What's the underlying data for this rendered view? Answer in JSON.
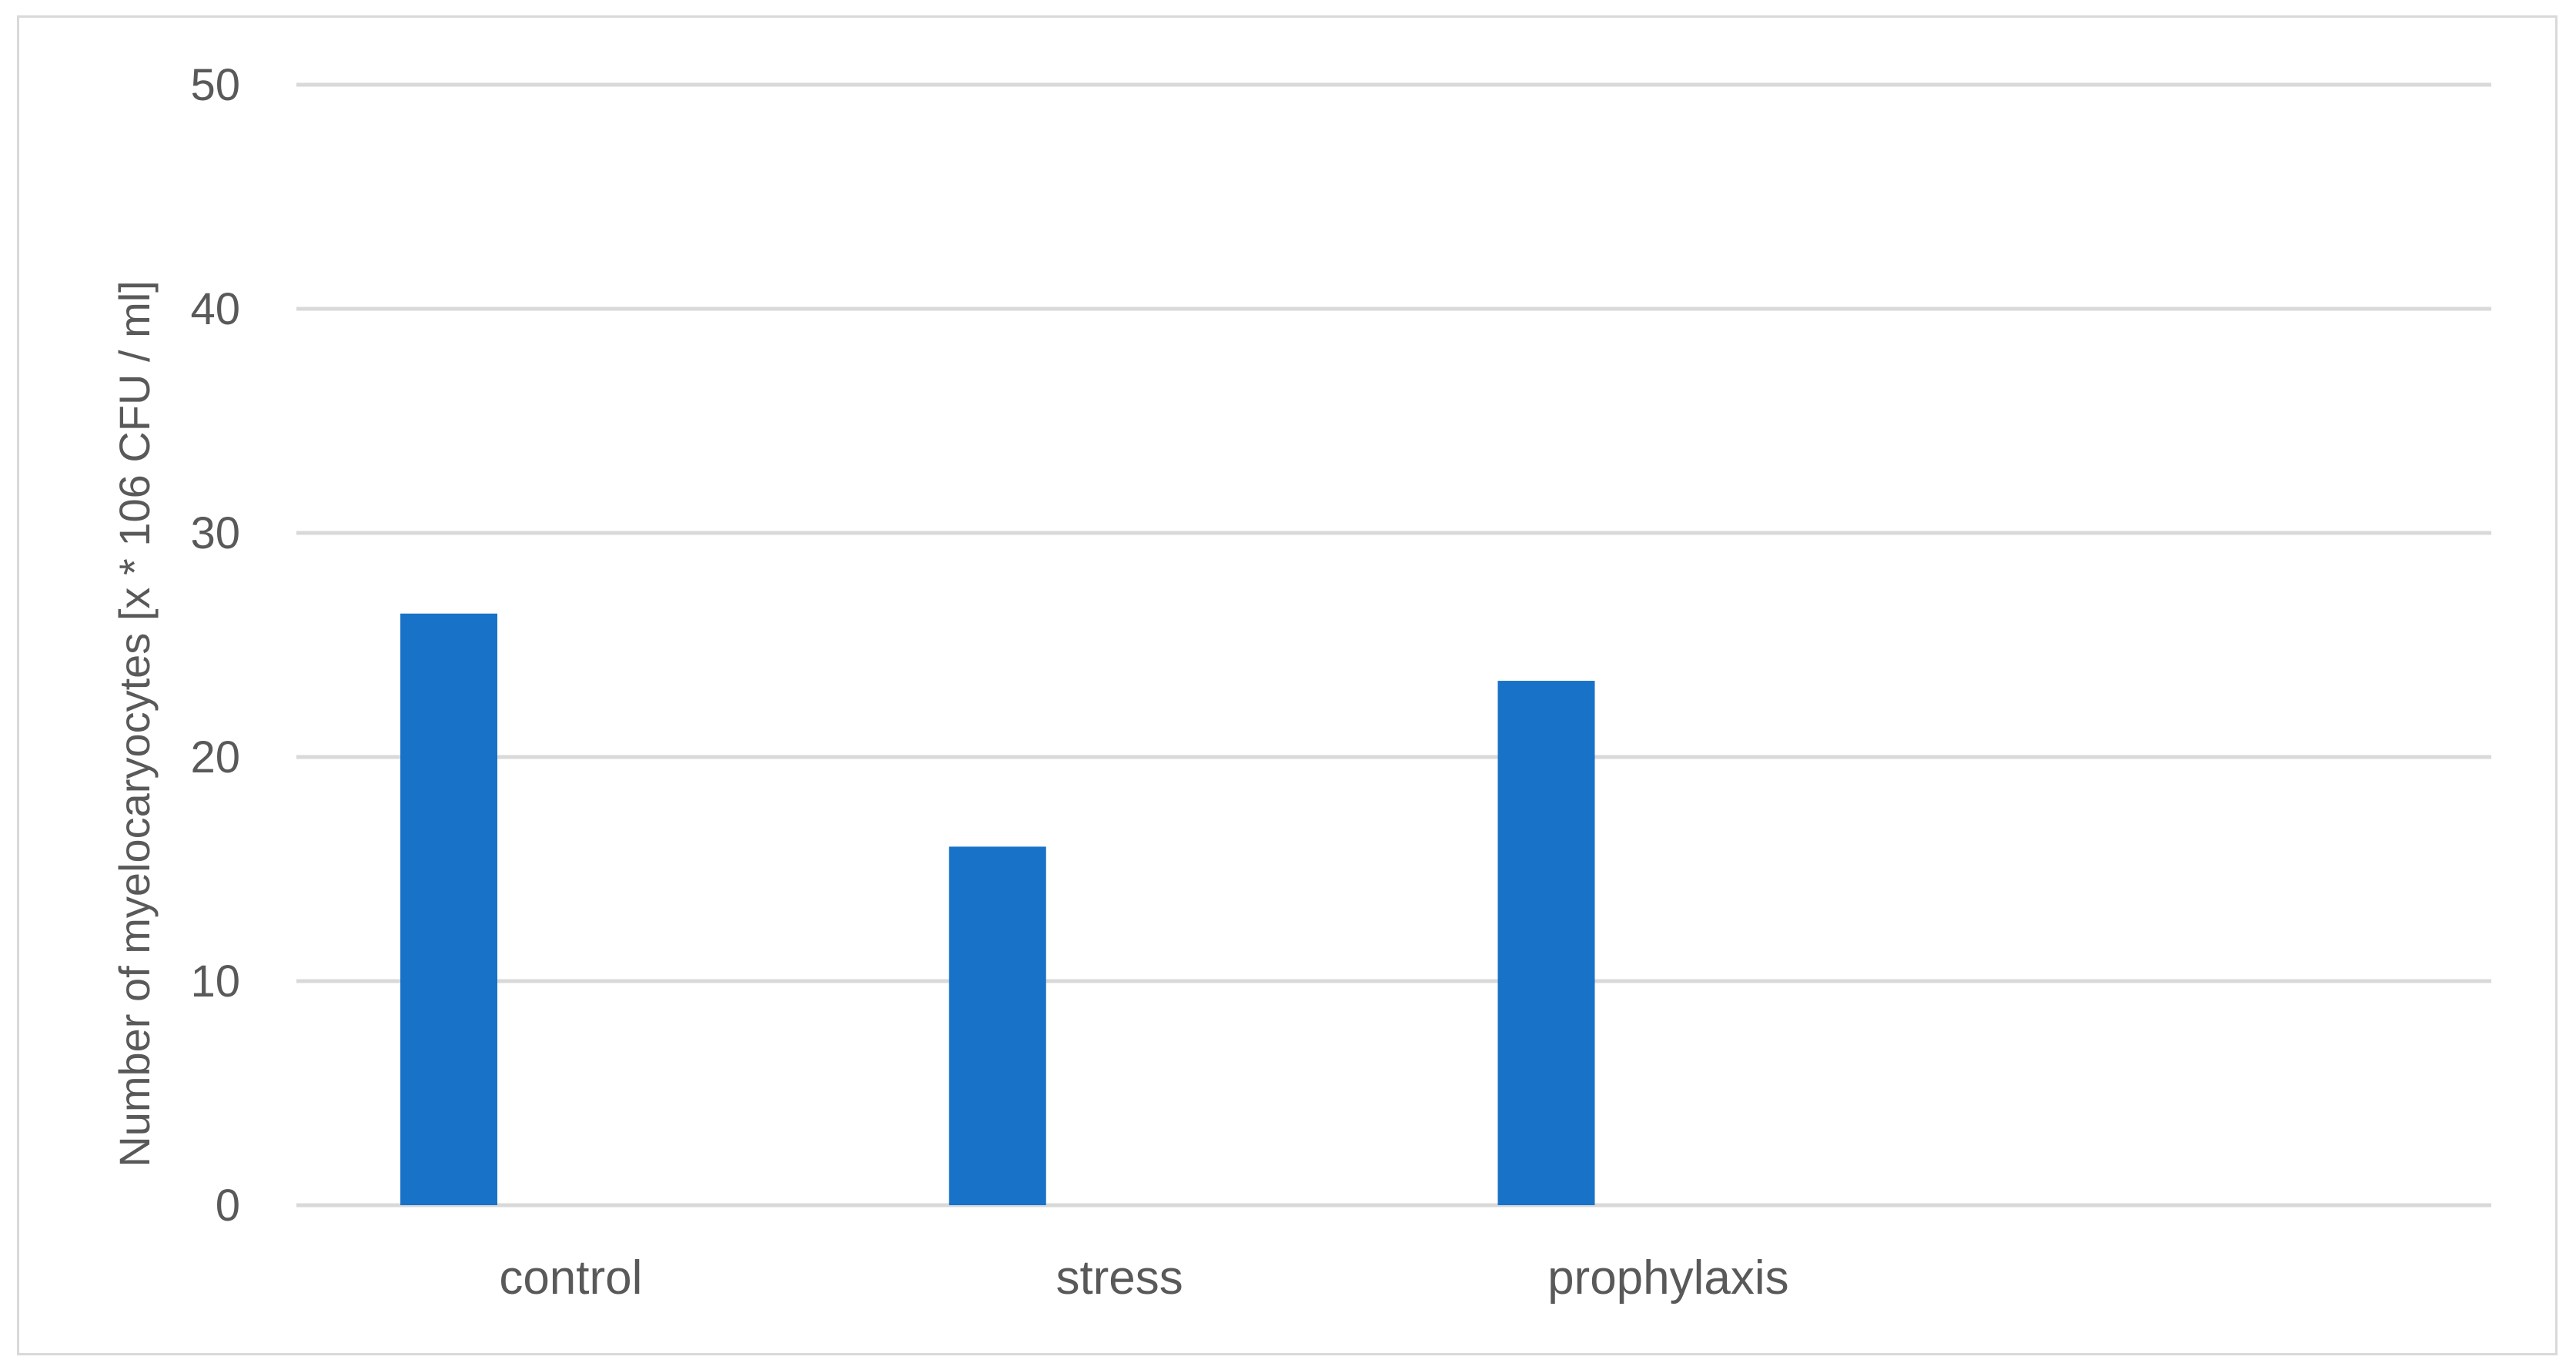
{
  "chart_data": {
    "type": "bar",
    "title": "",
    "xlabel": "",
    "ylabel": "Number of myelocaryocytes [x * 106 CFU / ml]",
    "categories": [
      "control",
      "stress",
      "prophylaxis",
      ""
    ],
    "values": [
      26.4,
      16.0,
      23.4,
      null
    ],
    "ylim": [
      0,
      50
    ],
    "yticks": [
      0,
      10,
      20,
      30,
      40,
      50
    ],
    "grid": true,
    "legend": "none",
    "bar_color": "#1872c7",
    "grid_color": "#d9d9d9",
    "text_color": "#595959"
  }
}
